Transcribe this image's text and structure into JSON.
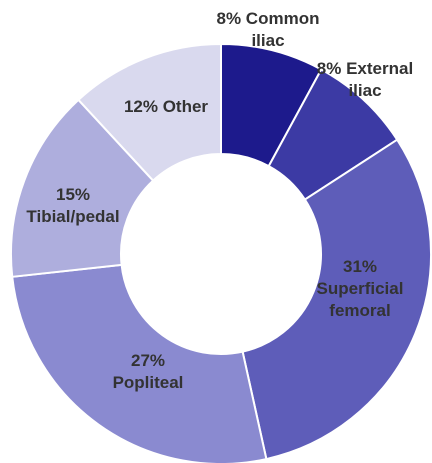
{
  "chart_data": {
    "type": "pie",
    "style": "donut",
    "slices": [
      {
        "value": 8,
        "label_lines": [
          "8% Common",
          "iliac"
        ],
        "color": "#1d1a8c"
      },
      {
        "value": 8,
        "label_lines": [
          "8% External",
          "iliac"
        ],
        "color": "#3c3aa4"
      },
      {
        "value": 31,
        "label_lines": [
          "31%",
          "Superficial",
          "femoral"
        ],
        "color": "#5e5db9"
      },
      {
        "value": 27,
        "label_lines": [
          "27%",
          "Popliteal"
        ],
        "color": "#8a8ad0"
      },
      {
        "value": 15,
        "label_lines": [
          "15%",
          "Tibial/pedal"
        ],
        "color": "#aeaedd"
      },
      {
        "value": 12,
        "label_lines": [
          "12% Other"
        ],
        "color": "#d9d9ee"
      }
    ]
  }
}
